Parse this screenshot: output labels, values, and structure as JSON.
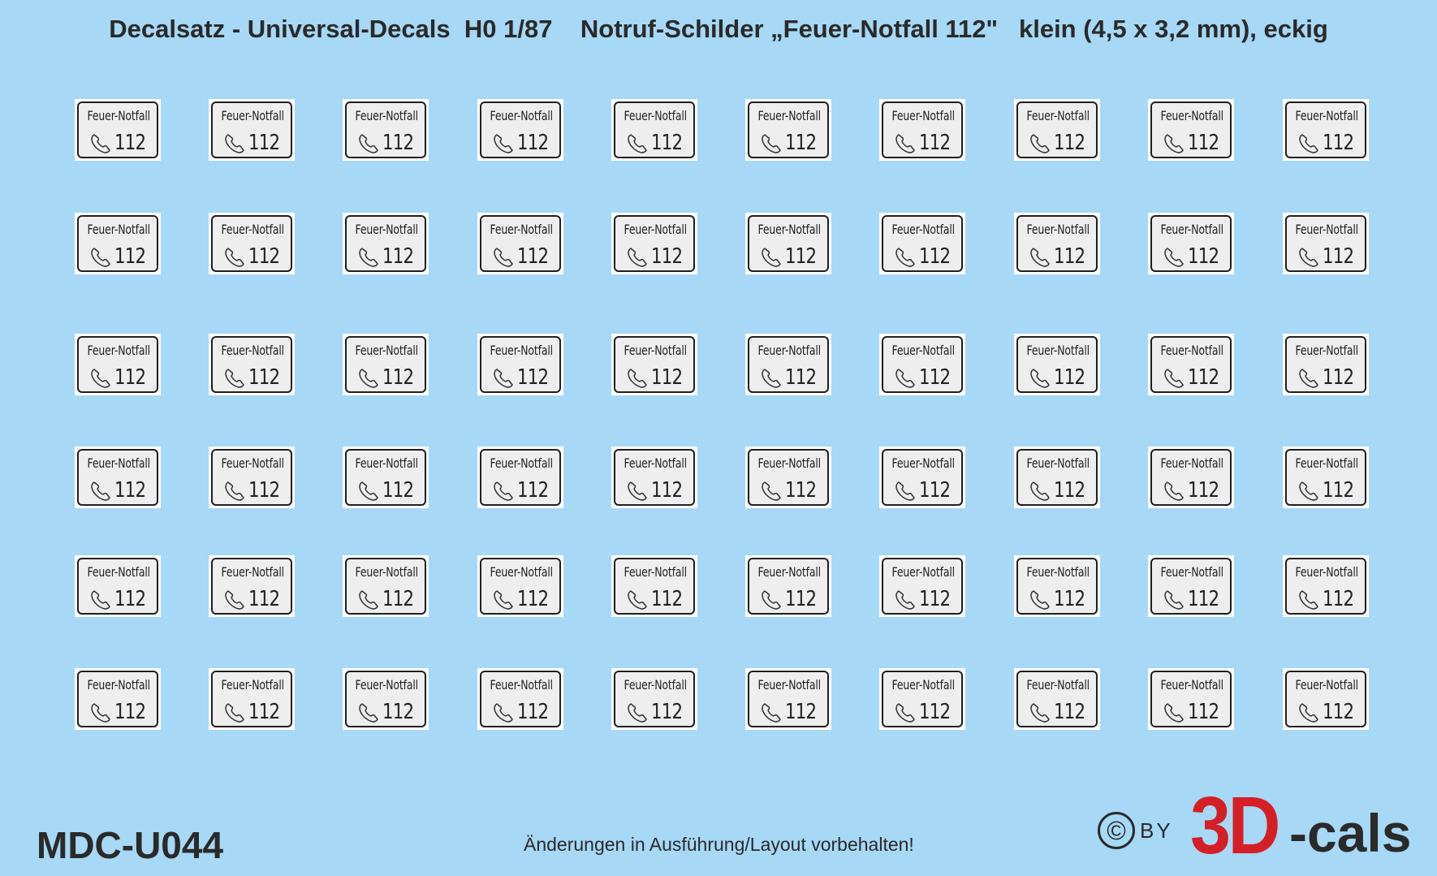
{
  "sheet": {
    "title": "Decalsatz - Universal-Decals  H0 1/87    Notruf-Schilder „Feuer-Notfall 112\"   klein (4,5 x 3,2 mm), eckig",
    "background_color": "#a7d8f5",
    "decal": {
      "label": "Feuer-Notfall",
      "number": "112",
      "icon": "phone-handset-icon",
      "rows": 6,
      "columns": 10
    },
    "product_code": "MDC-U044",
    "notice": "Änderungen in Ausführung/Layout vorbehalten!",
    "brand": {
      "copyright_symbol": "©",
      "by": "BY",
      "logo_red": "3D",
      "logo_dark": "-cals",
      "red_color": "#d41f26"
    }
  }
}
